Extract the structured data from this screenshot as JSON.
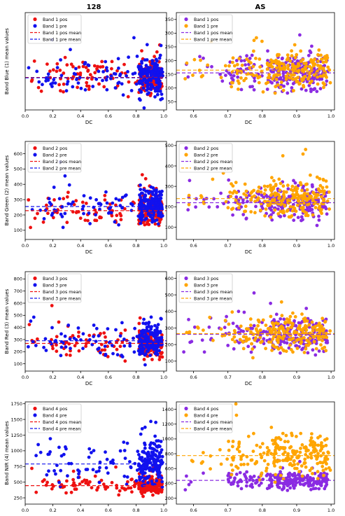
{
  "figure": {
    "column_titles": [
      "128",
      "AS"
    ]
  },
  "chart_data": [
    {
      "type": "scatter",
      "column": "128",
      "row": 1,
      "xlabel": "DC",
      "ylabel": "Band Blue (1) mean values",
      "xlim": [
        0.0,
        1.02
      ],
      "ylim": [
        20,
        445
      ],
      "xticks": [
        "0.0",
        "0.2",
        "0.4",
        "0.6",
        "0.8",
        "1.0"
      ],
      "xtick_values": [
        0.0,
        0.2,
        0.4,
        0.6,
        0.8,
        1.0
      ],
      "yticks": [],
      "ytick_values": [],
      "legend": [
        "Band 1 pos",
        "Band 1 pre",
        "Band 1 pos mean",
        "Band 1 pre mean"
      ],
      "legend_position": "upper-left",
      "series": [
        {
          "name": "Band 1 pos",
          "color": "#ee1111",
          "spread": 75,
          "offset": 0.0,
          "mean": 162
        },
        {
          "name": "Band 1 pre",
          "color": "#1111ee",
          "spread": 85,
          "offset": 0.01,
          "mean": 160
        }
      ]
    },
    {
      "type": "scatter",
      "column": "AS",
      "row": 1,
      "xlabel": "DC",
      "ylabel": "",
      "xlim": [
        0.55,
        1.01
      ],
      "ylim": [
        20,
        375
      ],
      "xticks": [
        "0.6",
        "0.7",
        "0.8",
        "0.9",
        "1.0"
      ],
      "xtick_values": [
        0.6,
        0.7,
        0.8,
        0.9,
        1.0
      ],
      "yticks": [
        "50",
        "100",
        "150",
        "200",
        "250",
        "300",
        "350"
      ],
      "ytick_values": [
        50,
        100,
        150,
        200,
        250,
        300,
        350
      ],
      "legend": [
        "Band 1 pos",
        "Band 1 pre",
        "Band 1 pos mean",
        "Band 1 pre mean"
      ],
      "legend_position": "upper-left",
      "series": [
        {
          "name": "Band 1 pos",
          "color": "#8a2be2",
          "spread": 60,
          "offset": 0.0,
          "mean": 155
        },
        {
          "name": "Band 1 pre",
          "color": "#ffa500",
          "spread": 70,
          "offset": 0.02,
          "mean": 165
        }
      ]
    },
    {
      "type": "scatter",
      "column": "128",
      "row": 2,
      "xlabel": "DC",
      "ylabel": "Band Green (2) mean values",
      "xlim": [
        0.0,
        1.02
      ],
      "ylim": [
        40,
        680
      ],
      "xticks": [
        "0.0",
        "0.2",
        "0.4",
        "0.6",
        "0.8",
        "1.0"
      ],
      "xtick_values": [
        0.0,
        0.2,
        0.4,
        0.6,
        0.8,
        1.0
      ],
      "yticks": [
        "100",
        "200",
        "300",
        "400",
        "500",
        "600"
      ],
      "ytick_values": [
        100,
        200,
        300,
        400,
        500,
        600
      ],
      "legend": [
        "Band 2 pos",
        "Band 2 pre",
        "Band 2 pos mean",
        "Band 2 pre mean"
      ],
      "legend_position": "upper-left",
      "series": [
        {
          "name": "Band 2 pos",
          "color": "#ee1111",
          "spread": 95,
          "offset": 0.0,
          "mean": 228
        },
        {
          "name": "Band 2 pre",
          "color": "#1111ee",
          "spread": 110,
          "offset": 0.01,
          "mean": 255
        }
      ]
    },
    {
      "type": "scatter",
      "column": "AS",
      "row": 2,
      "xlabel": "DC",
      "ylabel": "",
      "xlim": [
        0.55,
        1.01
      ],
      "ylim": [
        40,
        520
      ],
      "xticks": [
        "0.6",
        "0.7",
        "0.8",
        "0.9",
        "1.0"
      ],
      "xtick_values": [
        0.6,
        0.7,
        0.8,
        0.9,
        1.0
      ],
      "yticks": [
        "100",
        "200",
        "300",
        "400",
        "500"
      ],
      "ytick_values": [
        100,
        200,
        300,
        400,
        500
      ],
      "legend": [
        "Band 2 pos",
        "Band 2 pre",
        "Band 2 pos mean",
        "Band 2 pre mean"
      ],
      "legend_position": "upper-left",
      "series": [
        {
          "name": "Band 2 pos",
          "color": "#8a2be2",
          "spread": 80,
          "offset": 0.0,
          "mean": 220
        },
        {
          "name": "Band 2 pre",
          "color": "#ffa500",
          "spread": 90,
          "offset": 0.02,
          "mean": 240
        }
      ]
    },
    {
      "type": "scatter",
      "column": "128",
      "row": 3,
      "xlabel": "DC",
      "ylabel": "Band Red (3) mean values",
      "xlim": [
        0.0,
        1.02
      ],
      "ylim": [
        40,
        860
      ],
      "xticks": [
        "0.0",
        "0.2",
        "0.4",
        "0.6",
        "0.8",
        "1.0"
      ],
      "xtick_values": [
        0.0,
        0.2,
        0.4,
        0.6,
        0.8,
        1.0
      ],
      "yticks": [
        "100",
        "200",
        "300",
        "400",
        "500",
        "600",
        "700",
        "800"
      ],
      "ytick_values": [
        100,
        200,
        300,
        400,
        500,
        600,
        700,
        800
      ],
      "legend": [
        "Band 3 pos",
        "Band 3 pre",
        "Band 3 pos mean",
        "Band 3 pre mean"
      ],
      "legend_position": "upper-left",
      "series": [
        {
          "name": "Band 3 pos",
          "color": "#ee1111",
          "spread": 110,
          "offset": 0.0,
          "mean": 268
        },
        {
          "name": "Band 3 pre",
          "color": "#1111ee",
          "spread": 130,
          "offset": 0.01,
          "mean": 290
        }
      ]
    },
    {
      "type": "scatter",
      "column": "AS",
      "row": 3,
      "xlabel": "DC",
      "ylabel": "",
      "xlim": [
        0.55,
        1.01
      ],
      "ylim": [
        40,
        640
      ],
      "xticks": [
        "0.6",
        "0.7",
        "0.8",
        "0.9",
        "1.0"
      ],
      "xtick_values": [
        0.6,
        0.7,
        0.8,
        0.9,
        1.0
      ],
      "yticks": [
        "100",
        "200",
        "300",
        "400",
        "500",
        "600"
      ],
      "ytick_values": [
        100,
        200,
        300,
        400,
        500,
        600
      ],
      "legend": [
        "Band 3 pos",
        "Band 3 pre",
        "Band 3 pos mean",
        "Band 3 pre mean"
      ],
      "legend_position": "upper-left",
      "series": [
        {
          "name": "Band 3 pos",
          "color": "#8a2be2",
          "spread": 100,
          "offset": 0.0,
          "mean": 262
        },
        {
          "name": "Band 3 pre",
          "color": "#ffa500",
          "spread": 110,
          "offset": 0.02,
          "mean": 266
        }
      ]
    },
    {
      "type": "scatter",
      "column": "128",
      "row": 4,
      "xlabel": "DC",
      "ylabel": "Band NIR (4) mean values",
      "xlim": [
        0.0,
        1.02
      ],
      "ylim": [
        150,
        1780
      ],
      "xticks": [
        "0.0",
        "0.2",
        "0.4",
        "0.6",
        "0.8",
        "1.0"
      ],
      "xtick_values": [
        0.0,
        0.2,
        0.4,
        0.6,
        0.8,
        1.0
      ],
      "yticks": [
        "250",
        "500",
        "750",
        "1000",
        "1250",
        "1500",
        "1750"
      ],
      "ytick_values": [
        250,
        500,
        750,
        1000,
        1250,
        1500,
        1750
      ],
      "legend": [
        "Band 4 pos",
        "Band 4 pre",
        "Band 4 pos mean",
        "Band 4 pre mean"
      ],
      "legend_position": "upper-left",
      "series": [
        {
          "name": "Band 4 pos",
          "color": "#ee1111",
          "spread": 140,
          "offset": 0.0,
          "mean": 445
        },
        {
          "name": "Band 4 pre",
          "color": "#1111ee",
          "spread": 330,
          "offset": 0.01,
          "mean": 790
        }
      ]
    },
    {
      "type": "scatter",
      "column": "AS",
      "row": 4,
      "xlabel": "DC",
      "ylabel": "",
      "xlim": [
        0.55,
        1.01
      ],
      "ylim": [
        120,
        1500
      ],
      "xticks": [
        "0.6",
        "0.7",
        "0.8",
        "0.9",
        "1.0"
      ],
      "xtick_values": [
        0.6,
        0.7,
        0.8,
        0.9,
        1.0
      ],
      "yticks": [
        "200",
        "400",
        "600",
        "800",
        "1000",
        "1200",
        "1400"
      ],
      "ytick_values": [
        200,
        400,
        600,
        800,
        1000,
        1200,
        1400
      ],
      "legend": [
        "Band 4 pos",
        "Band 4 pre",
        "Band 4 pos mean",
        "Band 4 pre mean"
      ],
      "legend_position": "upper-left",
      "series": [
        {
          "name": "Band 4 pos",
          "color": "#8a2be2",
          "spread": 110,
          "offset": 0.0,
          "mean": 440
        },
        {
          "name": "Band 4 pre",
          "color": "#ffa500",
          "spread": 300,
          "offset": 0.02,
          "mean": 775
        }
      ]
    }
  ]
}
